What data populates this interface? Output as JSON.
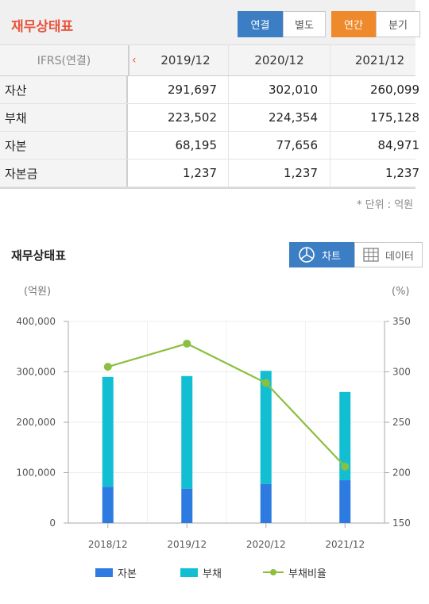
{
  "header": {
    "title": "재무상태표",
    "scope_tabs": [
      {
        "label": "연결",
        "active": true
      },
      {
        "label": "별도",
        "active": false
      }
    ],
    "period_tabs": [
      {
        "label": "연간",
        "active": true
      },
      {
        "label": "분기",
        "active": false
      }
    ]
  },
  "table": {
    "header_label": "IFRS(연결)",
    "prev_arrow": "‹",
    "columns": [
      "2019/12",
      "2020/12",
      "2021/12"
    ],
    "rows": [
      {
        "label": "자산",
        "values": [
          "291,697",
          "302,010",
          "260,099"
        ]
      },
      {
        "label": "부채",
        "values": [
          "223,502",
          "224,354",
          "175,128"
        ]
      },
      {
        "label": "자본",
        "values": [
          "68,195",
          "77,656",
          "84,971"
        ]
      },
      {
        "label": "자본금",
        "values": [
          "1,237",
          "1,237",
          "1,237"
        ]
      }
    ],
    "unit_note": "* 단위 : 억원"
  },
  "chart_section": {
    "title": "재무상태표",
    "chart_button": "차트",
    "data_button": "데이터"
  },
  "colors": {
    "accent_red": "#e8553d",
    "blue": "#3c7ec4",
    "orange": "#ef8a2c",
    "equity_bar": "#2d7be0",
    "debt_bar": "#12bfd2",
    "ratio_line": "#8bbf3f"
  },
  "chart_data": {
    "type": "bar",
    "categories": [
      "2018/12",
      "2019/12",
      "2020/12",
      "2021/12"
    ],
    "stacked": true,
    "left_axis_label": "(억원)",
    "right_axis_label": "(%)",
    "ylim": [
      0,
      400000
    ],
    "y_ticks": [
      "0",
      "100,000",
      "200,000",
      "300,000",
      "400,000"
    ],
    "y2lim": [
      150,
      350
    ],
    "y2_ticks": [
      "150",
      "200",
      "250",
      "300",
      "350"
    ],
    "series": [
      {
        "name": "자본",
        "kind": "bar",
        "values": [
          72000,
          68195,
          77656,
          84971
        ]
      },
      {
        "name": "부채",
        "kind": "bar",
        "values": [
          218000,
          223502,
          224354,
          175128
        ]
      },
      {
        "name": "부채비율",
        "kind": "line",
        "axis": "right",
        "values": [
          305,
          328,
          289,
          206
        ]
      }
    ],
    "grid": true,
    "legend_position": "bottom"
  }
}
